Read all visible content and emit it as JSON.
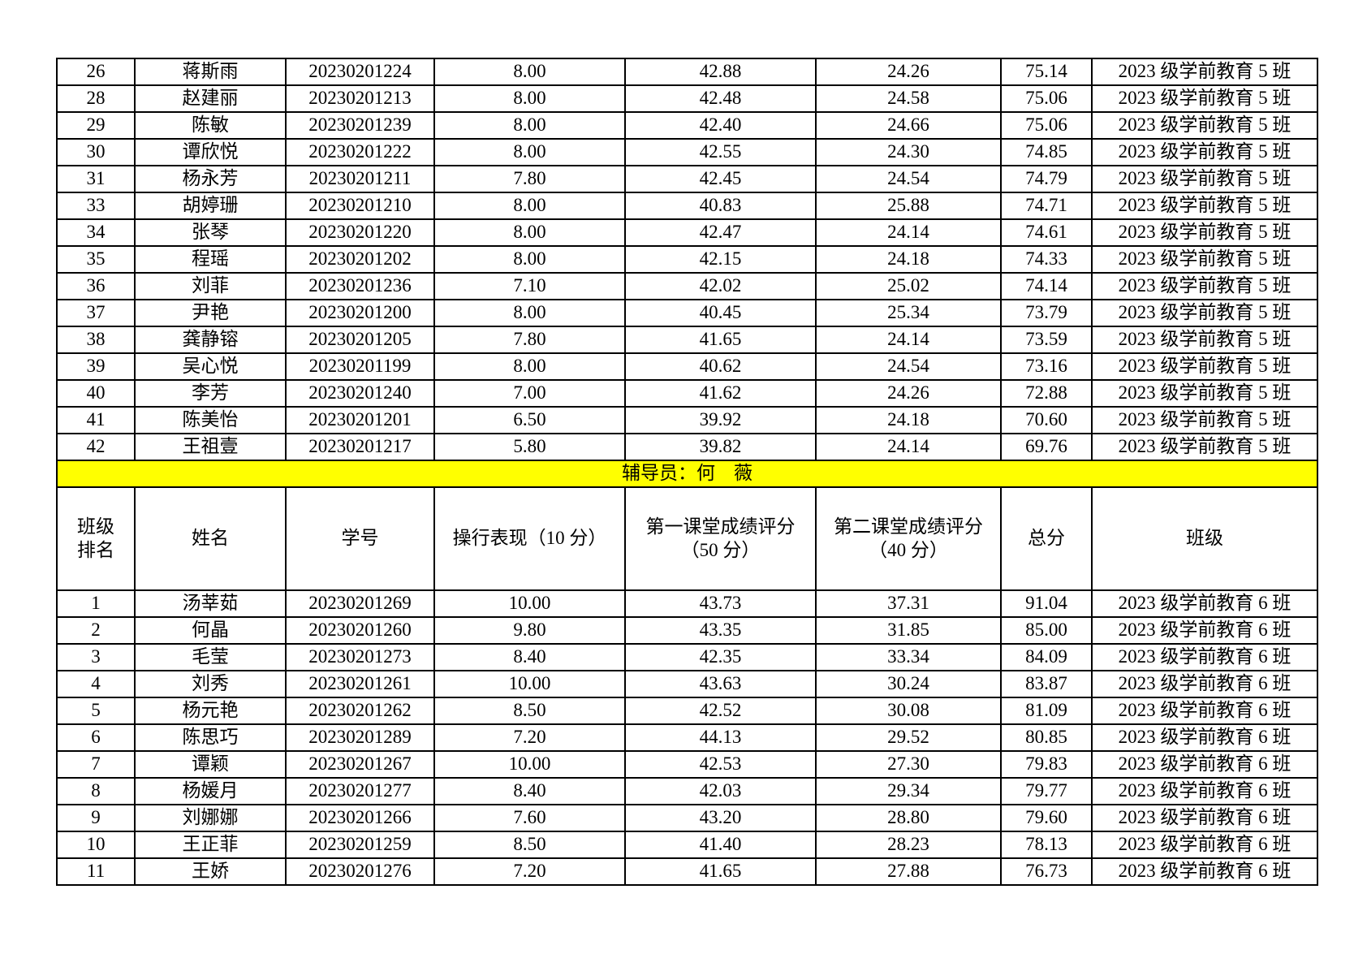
{
  "document": {
    "kind": "student-score-table",
    "text_color": "#000000",
    "border_color": "#000000",
    "highlight_color": "#ffff00",
    "background_color": "#ffffff"
  },
  "table_top": {
    "class_name": "2023 级学前教育 5 班",
    "rows": [
      [
        "26",
        "蒋斯雨",
        "20230201224",
        "8.00",
        "42.88",
        "24.26",
        "75.14",
        "2023 级学前教育 5 班"
      ],
      [
        "28",
        "赵建丽",
        "20230201213",
        "8.00",
        "42.48",
        "24.58",
        "75.06",
        "2023 级学前教育 5 班"
      ],
      [
        "29",
        "陈敏",
        "20230201239",
        "8.00",
        "42.40",
        "24.66",
        "75.06",
        "2023 级学前教育 5 班"
      ],
      [
        "30",
        "谭欣悦",
        "20230201222",
        "8.00",
        "42.55",
        "24.30",
        "74.85",
        "2023 级学前教育 5 班"
      ],
      [
        "31",
        "杨永芳",
        "20230201211",
        "7.80",
        "42.45",
        "24.54",
        "74.79",
        "2023 级学前教育 5 班"
      ],
      [
        "33",
        "胡婷珊",
        "20230201210",
        "8.00",
        "40.83",
        "25.88",
        "74.71",
        "2023 级学前教育 5 班"
      ],
      [
        "34",
        "张琴",
        "20230201220",
        "8.00",
        "42.47",
        "24.14",
        "74.61",
        "2023 级学前教育 5 班"
      ],
      [
        "35",
        "程瑶",
        "20230201202",
        "8.00",
        "42.15",
        "24.18",
        "74.33",
        "2023 级学前教育 5 班"
      ],
      [
        "36",
        "刘菲",
        "20230201236",
        "7.10",
        "42.02",
        "25.02",
        "74.14",
        "2023 级学前教育 5 班"
      ],
      [
        "37",
        "尹艳",
        "20230201200",
        "8.00",
        "40.45",
        "25.34",
        "73.79",
        "2023 级学前教育 5 班"
      ],
      [
        "38",
        "龚静镕",
        "20230201205",
        "7.80",
        "41.65",
        "24.14",
        "73.59",
        "2023 级学前教育 5 班"
      ],
      [
        "39",
        "吴心悦",
        "20230201199",
        "8.00",
        "40.62",
        "24.54",
        "73.16",
        "2023 级学前教育 5 班"
      ],
      [
        "40",
        "李芳",
        "20230201240",
        "7.00",
        "41.62",
        "24.26",
        "72.88",
        "2023 级学前教育 5 班"
      ],
      [
        "41",
        "陈美怡",
        "20230201201",
        "6.50",
        "39.92",
        "24.18",
        "70.60",
        "2023 级学前教育 5 班"
      ],
      [
        "42",
        "王祖壹",
        "20230201217",
        "5.80",
        "39.82",
        "24.14",
        "69.76",
        "2023 级学前教育 5 班"
      ]
    ]
  },
  "counselor_row": {
    "label": "辅导员：何　薇"
  },
  "table_bottom": {
    "class_name": "2023 级学前教育 6 班",
    "header": [
      "班级\n排名",
      "姓名",
      "学号",
      "操行表现（10 分）",
      "第一课堂成绩评分\n（50 分）",
      "第二课堂成绩评分\n（40 分）",
      "总分",
      "班级"
    ],
    "rows": [
      [
        "1",
        "汤莘茹",
        "20230201269",
        "10.00",
        "43.73",
        "37.31",
        "91.04",
        "2023 级学前教育 6 班"
      ],
      [
        "2",
        "何晶",
        "20230201260",
        "9.80",
        "43.35",
        "31.85",
        "85.00",
        "2023 级学前教育 6 班"
      ],
      [
        "3",
        "毛莹",
        "20230201273",
        "8.40",
        "42.35",
        "33.34",
        "84.09",
        "2023 级学前教育 6 班"
      ],
      [
        "4",
        "刘秀",
        "20230201261",
        "10.00",
        "43.63",
        "30.24",
        "83.87",
        "2023 级学前教育 6 班"
      ],
      [
        "5",
        "杨元艳",
        "20230201262",
        "8.50",
        "42.52",
        "30.08",
        "81.09",
        "2023 级学前教育 6 班"
      ],
      [
        "6",
        "陈思巧",
        "20230201289",
        "7.20",
        "44.13",
        "29.52",
        "80.85",
        "2023 级学前教育 6 班"
      ],
      [
        "7",
        "谭颖",
        "20230201267",
        "10.00",
        "42.53",
        "27.30",
        "79.83",
        "2023 级学前教育 6 班"
      ],
      [
        "8",
        "杨媛月",
        "20230201277",
        "8.40",
        "42.03",
        "29.34",
        "79.77",
        "2023 级学前教育 6 班"
      ],
      [
        "9",
        "刘娜娜",
        "20230201266",
        "7.60",
        "43.20",
        "28.80",
        "79.60",
        "2023 级学前教育 6 班"
      ],
      [
        "10",
        "王正菲",
        "20230201259",
        "8.50",
        "41.40",
        "28.23",
        "78.13",
        "2023 级学前教育 6 班"
      ],
      [
        "11",
        "王娇",
        "20230201276",
        "7.20",
        "41.65",
        "27.88",
        "76.73",
        "2023 级学前教育 6 班"
      ]
    ]
  }
}
